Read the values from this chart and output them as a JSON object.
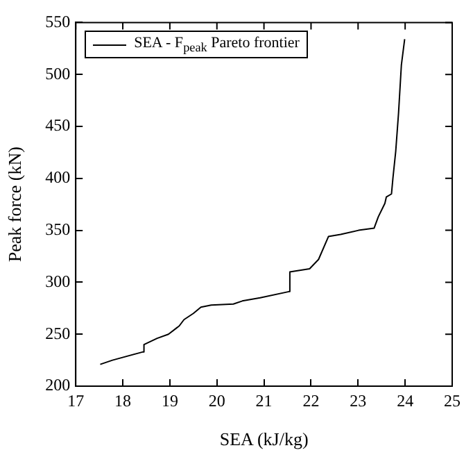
{
  "chart_data": {
    "type": "line",
    "xlabel": "SEA (kJ/kg)",
    "ylabel": "Peak force (kN)",
    "xlim": [
      17,
      25
    ],
    "xticks": [
      17,
      18,
      19,
      20,
      21,
      22,
      23,
      24,
      25
    ],
    "ylim": [
      200,
      550
    ],
    "yticks": [
      200,
      250,
      300,
      350,
      400,
      450,
      500,
      550
    ],
    "grid": false,
    "legend": "top left",
    "marker": "none",
    "line_style": "solid",
    "series": [
      {
        "name": "SEA - F$_{peak}$ Pareto frontier",
        "color": "#000000",
        "x": [
          17.52,
          17.78,
          18.35,
          18.43,
          18.45,
          18.73,
          18.97,
          19.2,
          19.3,
          19.5,
          19.66,
          19.88,
          20.35,
          20.54,
          20.92,
          21.53,
          21.55,
          21.97,
          22.16,
          22.37,
          22.63,
          23.01,
          23.34,
          23.43,
          23.57,
          23.6,
          23.71,
          23.74,
          23.8,
          23.86,
          23.92,
          23.99
        ],
        "values": [
          221,
          225,
          232,
          233,
          240,
          246,
          250,
          258,
          264,
          270,
          276,
          278,
          279,
          282,
          285,
          291,
          310,
          313,
          322,
          344,
          346,
          350,
          352,
          363,
          376,
          382,
          385,
          400,
          426,
          463,
          509,
          534
        ]
      }
    ]
  }
}
